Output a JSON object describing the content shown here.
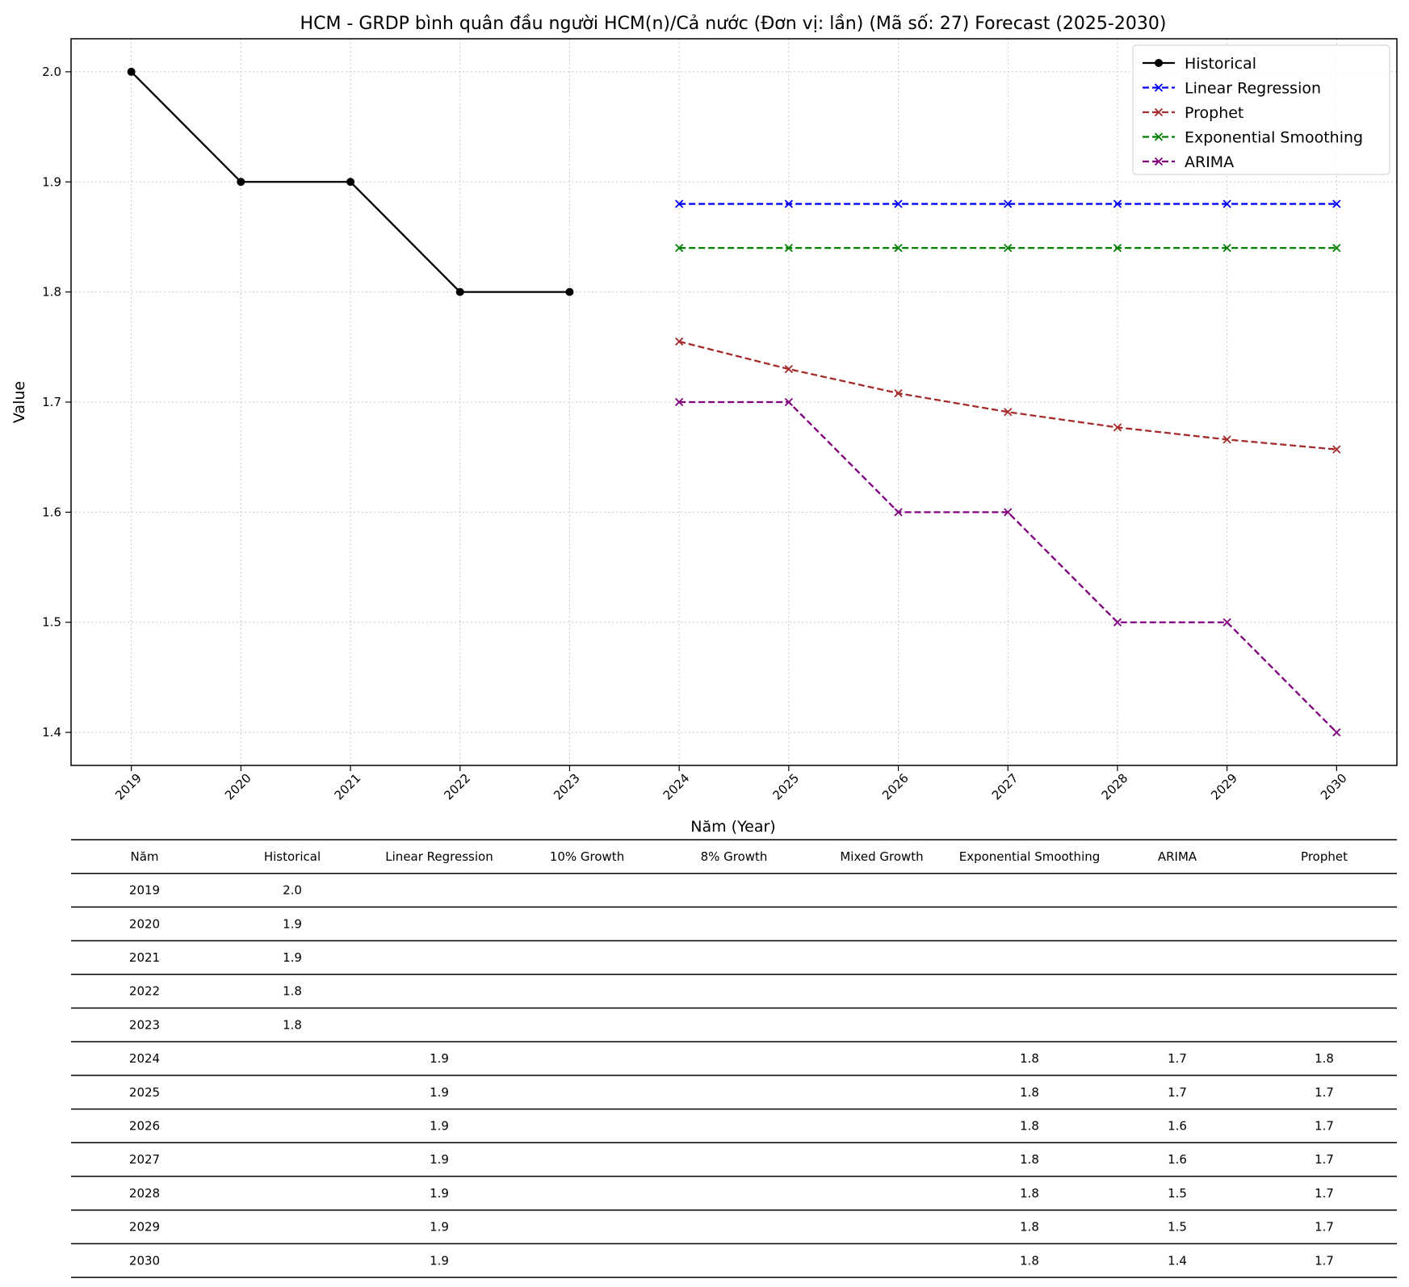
{
  "chart_data": {
    "type": "line",
    "title": "HCM - GRDP bình quân đầu người HCM(n)/Cả nước (Đơn vị: lần) (Mã số: 27) Forecast (2025-2030)",
    "xlabel": "Năm (Year)",
    "ylabel": "Value",
    "x": [
      2019,
      2020,
      2021,
      2022,
      2023,
      2024,
      2025,
      2026,
      2027,
      2028,
      2029,
      2030
    ],
    "xlim": [
      2018.45,
      2030.55
    ],
    "ylim": [
      1.37,
      2.03
    ],
    "yticks": [
      1.4,
      1.5,
      1.6,
      1.7,
      1.8,
      1.9,
      2.0
    ],
    "grid": true,
    "legend_position": "top-right",
    "series": [
      {
        "name": "Historical",
        "color": "#000000",
        "style": "solid",
        "marker": "circle",
        "x": [
          2019,
          2020,
          2021,
          2022,
          2023
        ],
        "values": [
          2.0,
          1.9,
          1.9,
          1.8,
          1.8
        ]
      },
      {
        "name": "Linear Regression",
        "color": "#0000ff",
        "style": "dashed",
        "marker": "x",
        "x": [
          2024,
          2025,
          2026,
          2027,
          2028,
          2029,
          2030
        ],
        "values": [
          1.88,
          1.88,
          1.88,
          1.88,
          1.88,
          1.88,
          1.88
        ]
      },
      {
        "name": "Prophet",
        "color": "#a52a2a",
        "style": "dashed",
        "marker": "x",
        "x": [
          2024,
          2025,
          2026,
          2027,
          2028,
          2029,
          2030
        ],
        "values": [
          1.755,
          1.73,
          1.708,
          1.691,
          1.677,
          1.666,
          1.657
        ]
      },
      {
        "name": "Exponential Smoothing",
        "color": "#008000",
        "style": "dashed",
        "marker": "x",
        "x": [
          2024,
          2025,
          2026,
          2027,
          2028,
          2029,
          2030
        ],
        "values": [
          1.84,
          1.84,
          1.84,
          1.84,
          1.84,
          1.84,
          1.84
        ]
      },
      {
        "name": "ARIMA",
        "color": "#800080",
        "style": "dashed",
        "marker": "x",
        "x": [
          2024,
          2025,
          2026,
          2027,
          2028,
          2029,
          2030
        ],
        "values": [
          1.7,
          1.7,
          1.6,
          1.6,
          1.5,
          1.5,
          1.4
        ]
      }
    ],
    "table": {
      "columns": [
        "Năm",
        "Historical",
        "Linear Regression",
        "10% Growth",
        "8% Growth",
        "Mixed Growth",
        "Exponential Smoothing",
        "ARIMA",
        "Prophet"
      ],
      "rows": [
        [
          "2019",
          "2.0",
          "",
          "",
          "",
          "",
          "",
          "",
          ""
        ],
        [
          "2020",
          "1.9",
          "",
          "",
          "",
          "",
          "",
          "",
          ""
        ],
        [
          "2021",
          "1.9",
          "",
          "",
          "",
          "",
          "",
          "",
          ""
        ],
        [
          "2022",
          "1.8",
          "",
          "",
          "",
          "",
          "",
          "",
          ""
        ],
        [
          "2023",
          "1.8",
          "",
          "",
          "",
          "",
          "",
          "",
          ""
        ],
        [
          "2024",
          "",
          "1.9",
          "",
          "",
          "",
          "1.8",
          "1.7",
          "1.8"
        ],
        [
          "2025",
          "",
          "1.9",
          "",
          "",
          "",
          "1.8",
          "1.7",
          "1.7"
        ],
        [
          "2026",
          "",
          "1.9",
          "",
          "",
          "",
          "1.8",
          "1.6",
          "1.7"
        ],
        [
          "2027",
          "",
          "1.9",
          "",
          "",
          "",
          "1.8",
          "1.6",
          "1.7"
        ],
        [
          "2028",
          "",
          "1.9",
          "",
          "",
          "",
          "1.8",
          "1.5",
          "1.7"
        ],
        [
          "2029",
          "",
          "1.9",
          "",
          "",
          "",
          "1.8",
          "1.5",
          "1.7"
        ],
        [
          "2030",
          "",
          "1.9",
          "",
          "",
          "",
          "1.8",
          "1.4",
          "1.7"
        ]
      ]
    }
  }
}
